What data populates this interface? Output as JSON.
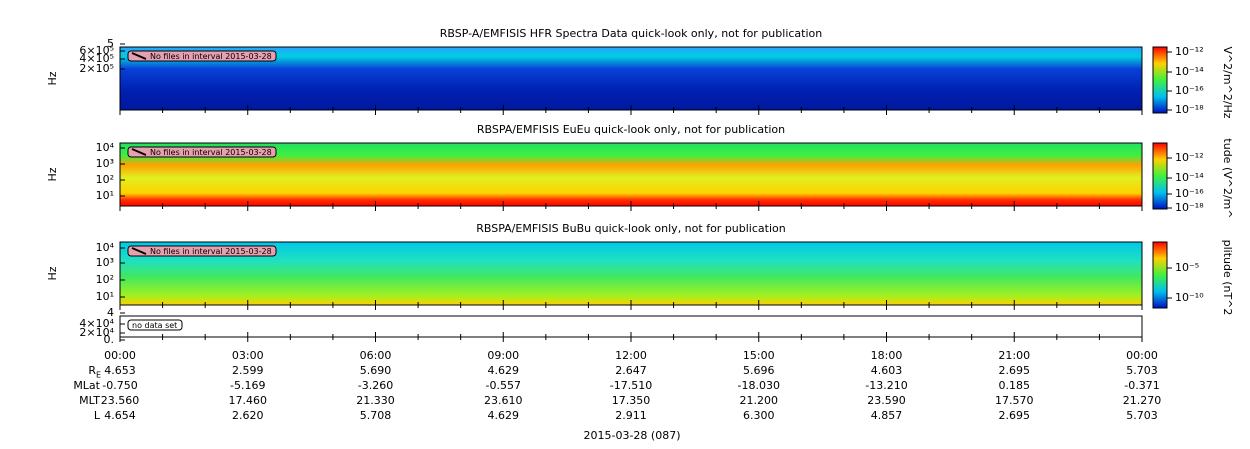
{
  "panels": [
    {
      "title": "RBSP-A/EMFISIS  HFR Spectra Data quick-look only, not for publication",
      "ylabel": "Hz",
      "yticks": [
        "5",
        "6×10⁵",
        "4×10⁵",
        "2×10⁵"
      ],
      "note": "No files in interval 2015-03-28",
      "cbar_label": "V^2/m^2/Hz",
      "cbar_ticks": [
        "10⁻¹²",
        "10⁻¹⁴",
        "10⁻¹⁶",
        "10⁻¹⁸"
      ]
    },
    {
      "title": "RBSPA/EMFISIS  EuEu quick-look only, not for publication",
      "ylabel": "Hz",
      "yticks": [
        "10⁴",
        "10³",
        "10²",
        "10¹"
      ],
      "note": "No files in interval 2015-03-28",
      "cbar_label": "tude (V^2/m^",
      "cbar_ticks": [
        "10⁻¹²",
        "10⁻¹⁴",
        "10⁻¹⁶",
        "10⁻¹⁸"
      ]
    },
    {
      "title": "RBSPA/EMFISIS  BuBu quick-look only, not for publication",
      "ylabel": "Hz",
      "yticks": [
        "10⁴",
        "10³",
        "10²",
        "10¹"
      ],
      "note": "No files in interval 2015-03-28",
      "cbar_label": "plitude (nT^2",
      "cbar_ticks": [
        "10⁻⁵",
        "10⁻¹⁰"
      ]
    },
    {
      "yticks": [
        "4",
        "4×10⁴",
        "2×10⁴",
        "0."
      ],
      "note": "no data set"
    }
  ],
  "xaxis": {
    "times": [
      "00:00",
      "03:00",
      "06:00",
      "09:00",
      "12:00",
      "15:00",
      "18:00",
      "21:00",
      "00:00"
    ],
    "rows": [
      {
        "label": "R",
        "sub": "E",
        "values": [
          "4.653",
          "2.599",
          "5.690",
          "4.629",
          "2.647",
          "5.696",
          "4.603",
          "2.695",
          "5.703"
        ]
      },
      {
        "label": "MLat",
        "values": [
          "-0.750",
          "-5.169",
          "-3.260",
          "-0.557",
          "-17.510",
          "-18.030",
          "-13.210",
          "0.185",
          "-0.371"
        ]
      },
      {
        "label": "MLT",
        "values": [
          "23.560",
          "17.460",
          "21.330",
          "23.610",
          "17.350",
          "21.200",
          "23.590",
          "17.570",
          "21.270"
        ]
      },
      {
        "label": "L",
        "values": [
          "4.654",
          "2.620",
          "5.708",
          "4.629",
          "2.911",
          "6.300",
          "4.857",
          "2.695",
          "5.703"
        ]
      }
    ],
    "date": "2015-03-28 (087)"
  }
}
